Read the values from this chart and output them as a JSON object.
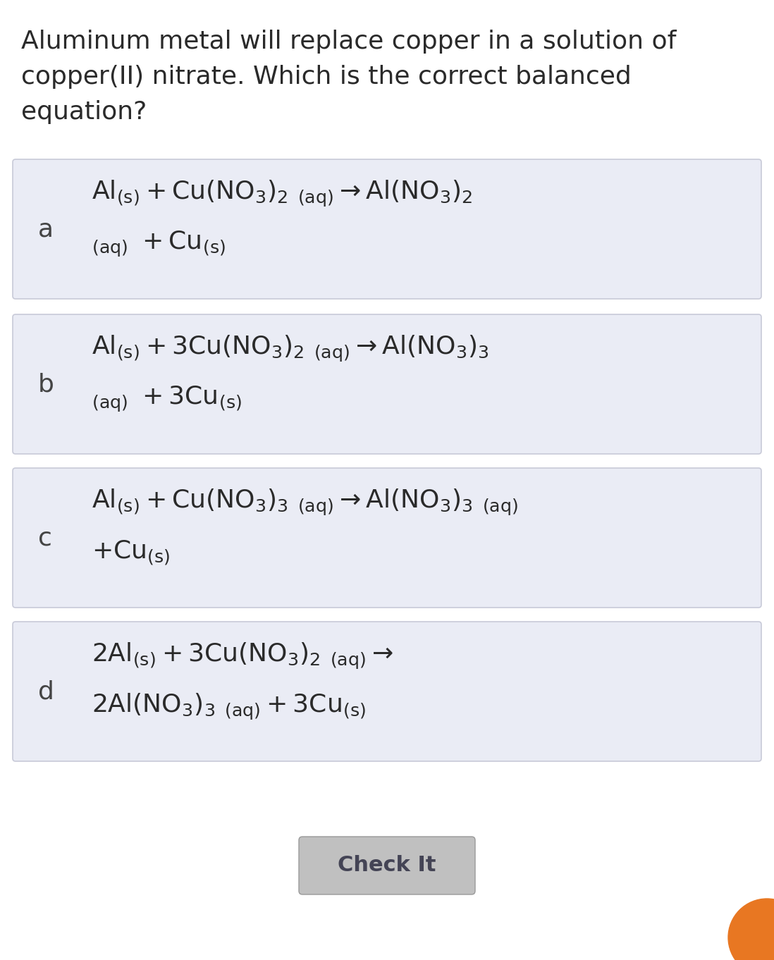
{
  "title_line1": "Aluminum metal will replace copper in a solution of",
  "title_line2": "copper(II) nitrate. Which is the correct balanced",
  "title_line3": "equation?",
  "bg_color": "#ffffff",
  "card_bg_color": "#eaecf5",
  "card_border_color": "#c8cad8",
  "title_fontsize": 26,
  "label_fontsize": 26,
  "eq_fontsize": 26,
  "button_text": "Check It",
  "button_bg": "#c0c0c0",
  "button_text_color": "#444455",
  "text_color": "#2a2a2a",
  "label_color": "#444444",
  "orange_color": "#e87722",
  "fig_width": 10.98,
  "fig_height": 13.62,
  "dpi": 100
}
